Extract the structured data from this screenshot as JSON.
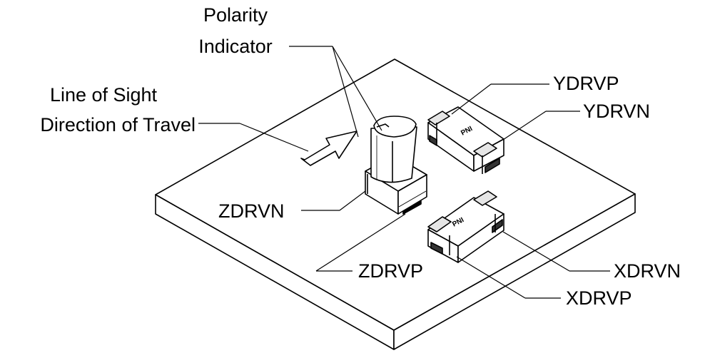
{
  "labels": {
    "polarity_line1": "Polarity",
    "polarity_line2": "Indicator",
    "los_line1": "Line of Sight",
    "los_line2": "Direction of Travel",
    "ydrvp": "YDRVP",
    "ydrvn": "YDRVN",
    "zdrvn": "ZDRVN",
    "zdrvp": "ZDRVP",
    "xdrvn": "XDRVN",
    "xdrvp": "XDRVP"
  },
  "component_marking": "PNI",
  "colors": {
    "line": "#000000",
    "fill": "#ffffff",
    "shade": "#e6e6e6",
    "dark": "#333333"
  }
}
